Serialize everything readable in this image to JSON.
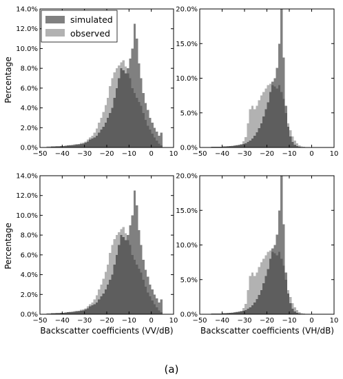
{
  "figure": {
    "ylabel": "Percentage",
    "xlabel_left": "Backscatter coefficients (VV/dB)",
    "xlabel_right": "Backscatter coefficients (VH/dB)",
    "caption": "(a)"
  },
  "legend": {
    "placement": "top-left of first panel",
    "items": [
      {
        "name": "simulated",
        "color": "#808080"
      },
      {
        "name": "observed",
        "color": "#b2b2b2"
      }
    ]
  },
  "colors": {
    "simulated": "#808080",
    "observed": "#b2b2b2",
    "overlap": "#5e5e5e"
  },
  "chart_data": [
    {
      "type": "bar",
      "panel": "top-left",
      "xlim": [
        -50,
        10
      ],
      "ylim": [
        0,
        14
      ],
      "xticks": [
        "−50",
        "−40",
        "−30",
        "−20",
        "−10",
        "0",
        "10"
      ],
      "yticks": [
        "0.0%",
        "2.0%",
        "4.0%",
        "6.0%",
        "8.0%",
        "10.0%",
        "12.0%",
        "14.0%"
      ],
      "bin_width": 1,
      "series": [
        {
          "name": "simulated",
          "bin_starts": [
            -50,
            -49,
            -48,
            -47,
            -46,
            -45,
            -44,
            -43,
            -42,
            -41,
            -40,
            -39,
            -38,
            -37,
            -36,
            -35,
            -34,
            -33,
            -32,
            -31,
            -30,
            -29,
            -28,
            -27,
            -26,
            -25,
            -24,
            -23,
            -22,
            -21,
            -20,
            -19,
            -18,
            -17,
            -16,
            -15,
            -14,
            -13,
            -12,
            -11,
            -10,
            -9,
            -8,
            -7,
            -6,
            -5,
            -4,
            -3,
            -2,
            -1,
            0,
            1,
            2,
            3,
            4
          ],
          "values": [
            0.05,
            0.05,
            0.05,
            0.05,
            0.05,
            0.1,
            0.1,
            0.1,
            0.1,
            0.15,
            0.15,
            0.15,
            0.2,
            0.2,
            0.25,
            0.25,
            0.3,
            0.3,
            0.35,
            0.4,
            0.5,
            0.6,
            0.8,
            0.9,
            1.0,
            1.2,
            1.5,
            1.8,
            2.1,
            2.5,
            3.0,
            3.5,
            4.0,
            5.0,
            6.0,
            7.0,
            8.0,
            7.8,
            7.5,
            8.0,
            9.0,
            10.0,
            12.5,
            11.0,
            8.5,
            7.0,
            5.5,
            4.5,
            3.8,
            3.0,
            2.5,
            2.0,
            1.6,
            1.2,
            1.5
          ]
        },
        {
          "name": "observed",
          "bin_starts": [
            -50,
            -49,
            -48,
            -47,
            -46,
            -45,
            -44,
            -43,
            -42,
            -41,
            -40,
            -39,
            -38,
            -37,
            -36,
            -35,
            -34,
            -33,
            -32,
            -31,
            -30,
            -29,
            -28,
            -27,
            -26,
            -25,
            -24,
            -23,
            -22,
            -21,
            -20,
            -19,
            -18,
            -17,
            -16,
            -15,
            -14,
            -13,
            -12,
            -11,
            -10,
            -9,
            -8,
            -7,
            -6,
            -5,
            -4,
            -3,
            -2,
            -1,
            0,
            1,
            2,
            3,
            4
          ],
          "values": [
            0.05,
            0.05,
            0.05,
            0.1,
            0.1,
            0.1,
            0.1,
            0.15,
            0.15,
            0.15,
            0.15,
            0.2,
            0.2,
            0.25,
            0.25,
            0.3,
            0.3,
            0.35,
            0.45,
            0.5,
            0.6,
            0.8,
            1.0,
            1.2,
            1.5,
            1.9,
            2.5,
            3.0,
            3.6,
            4.3,
            5.0,
            6.2,
            7.0,
            7.6,
            8.0,
            8.3,
            8.6,
            8.8,
            8.2,
            7.5,
            7.0,
            6.0,
            5.5,
            5.0,
            4.6,
            4.2,
            3.5,
            2.8,
            2.2,
            1.8,
            1.4,
            1.0,
            0.7,
            0.4,
            0.2
          ]
        }
      ]
    },
    {
      "type": "bar",
      "panel": "top-right",
      "xlim": [
        -50,
        10
      ],
      "ylim": [
        0,
        20
      ],
      "xticks": [
        "−50",
        "−40",
        "−30",
        "−20",
        "−10",
        "0",
        "10"
      ],
      "yticks": [
        "0.0%",
        "5.0%",
        "10.0%",
        "15.0%",
        "20.0%"
      ],
      "bin_width": 1,
      "series": [
        {
          "name": "simulated",
          "bin_starts": [
            -50,
            -49,
            -48,
            -47,
            -46,
            -45,
            -44,
            -43,
            -42,
            -41,
            -40,
            -39,
            -38,
            -37,
            -36,
            -35,
            -34,
            -33,
            -32,
            -31,
            -30,
            -29,
            -28,
            -27,
            -26,
            -25,
            -24,
            -23,
            -22,
            -21,
            -20,
            -19,
            -18,
            -17,
            -16,
            -15,
            -14,
            -13,
            -12,
            -11,
            -10,
            -9,
            -8,
            -7,
            -6,
            -5,
            -4,
            -3,
            -2,
            -1,
            0
          ],
          "values": [
            0.05,
            0.05,
            0.05,
            0.05,
            0.05,
            0.1,
            0.1,
            0.1,
            0.1,
            0.1,
            0.15,
            0.15,
            0.15,
            0.2,
            0.2,
            0.25,
            0.3,
            0.35,
            0.4,
            0.5,
            0.6,
            0.8,
            1.0,
            1.3,
            1.7,
            2.2,
            2.8,
            3.5,
            4.5,
            5.5,
            6.5,
            8.0,
            9.5,
            10.0,
            11.5,
            15.0,
            20.0,
            13.0,
            6.0,
            3.0,
            1.6,
            0.8,
            0.4,
            0.2,
            0.1,
            0.05,
            0.05,
            0.05,
            0.05,
            0.05,
            0.05
          ]
        },
        {
          "name": "observed",
          "bin_starts": [
            -50,
            -49,
            -48,
            -47,
            -46,
            -45,
            -44,
            -43,
            -42,
            -41,
            -40,
            -39,
            -38,
            -37,
            -36,
            -35,
            -34,
            -33,
            -32,
            -31,
            -30,
            -29,
            -28,
            -27,
            -26,
            -25,
            -24,
            -23,
            -22,
            -21,
            -20,
            -19,
            -18,
            -17,
            -16,
            -15,
            -14,
            -13,
            -12,
            -11,
            -10,
            -9,
            -8,
            -7,
            -6,
            -5,
            -4,
            -3,
            -2,
            -1,
            0
          ],
          "values": [
            0.05,
            0.05,
            0.05,
            0.05,
            0.05,
            0.1,
            0.1,
            0.1,
            0.1,
            0.1,
            0.15,
            0.15,
            0.2,
            0.2,
            0.25,
            0.3,
            0.35,
            0.4,
            0.5,
            0.9,
            1.5,
            3.5,
            5.5,
            6.0,
            5.5,
            6.0,
            6.8,
            7.5,
            8.0,
            8.5,
            9.0,
            9.2,
            9.0,
            8.8,
            8.5,
            9.0,
            8.0,
            7.0,
            5.0,
            3.5,
            2.5,
            1.6,
            1.0,
            0.6,
            0.3,
            0.15,
            0.1,
            0.05,
            0.05,
            0.05,
            0.05
          ]
        }
      ]
    },
    {
      "type": "bar",
      "panel": "bottom-left",
      "xlim": [
        -50,
        10
      ],
      "ylim": [
        0,
        14
      ],
      "xticks": [
        "−50",
        "−40",
        "−30",
        "−20",
        "−10",
        "0",
        "10"
      ],
      "yticks": [
        "0.0%",
        "2.0%",
        "4.0%",
        "6.0%",
        "8.0%",
        "10.0%",
        "12.0%",
        "14.0%"
      ],
      "bin_width": 1,
      "series": [
        {
          "name": "simulated",
          "bin_starts": [
            -50,
            -49,
            -48,
            -47,
            -46,
            -45,
            -44,
            -43,
            -42,
            -41,
            -40,
            -39,
            -38,
            -37,
            -36,
            -35,
            -34,
            -33,
            -32,
            -31,
            -30,
            -29,
            -28,
            -27,
            -26,
            -25,
            -24,
            -23,
            -22,
            -21,
            -20,
            -19,
            -18,
            -17,
            -16,
            -15,
            -14,
            -13,
            -12,
            -11,
            -10,
            -9,
            -8,
            -7,
            -6,
            -5,
            -4,
            -3,
            -2,
            -1,
            0,
            1,
            2,
            3,
            4
          ],
          "values": [
            0.05,
            0.05,
            0.05,
            0.05,
            0.05,
            0.1,
            0.1,
            0.1,
            0.1,
            0.15,
            0.15,
            0.15,
            0.2,
            0.2,
            0.25,
            0.25,
            0.3,
            0.3,
            0.35,
            0.4,
            0.5,
            0.6,
            0.8,
            0.9,
            1.0,
            1.2,
            1.5,
            1.8,
            2.1,
            2.5,
            3.0,
            3.5,
            4.0,
            5.0,
            6.0,
            7.0,
            8.0,
            7.8,
            7.5,
            8.0,
            9.0,
            10.0,
            12.5,
            11.0,
            8.5,
            7.0,
            5.5,
            4.5,
            3.8,
            3.0,
            2.5,
            2.0,
            1.6,
            1.2,
            1.5
          ]
        },
        {
          "name": "observed",
          "bin_starts": [
            -50,
            -49,
            -48,
            -47,
            -46,
            -45,
            -44,
            -43,
            -42,
            -41,
            -40,
            -39,
            -38,
            -37,
            -36,
            -35,
            -34,
            -33,
            -32,
            -31,
            -30,
            -29,
            -28,
            -27,
            -26,
            -25,
            -24,
            -23,
            -22,
            -21,
            -20,
            -19,
            -18,
            -17,
            -16,
            -15,
            -14,
            -13,
            -12,
            -11,
            -10,
            -9,
            -8,
            -7,
            -6,
            -5,
            -4,
            -3,
            -2,
            -1,
            0,
            1,
            2,
            3,
            4
          ],
          "values": [
            0.05,
            0.05,
            0.05,
            0.1,
            0.1,
            0.1,
            0.1,
            0.15,
            0.15,
            0.15,
            0.15,
            0.2,
            0.2,
            0.25,
            0.25,
            0.3,
            0.3,
            0.35,
            0.45,
            0.5,
            0.6,
            0.8,
            1.0,
            1.2,
            1.5,
            1.9,
            2.5,
            3.0,
            3.6,
            4.3,
            5.0,
            6.2,
            7.0,
            7.6,
            8.0,
            8.3,
            8.6,
            8.8,
            8.2,
            7.5,
            7.0,
            6.0,
            5.5,
            5.0,
            4.6,
            4.2,
            3.5,
            2.8,
            2.2,
            1.8,
            1.4,
            1.0,
            0.7,
            0.4,
            0.2
          ]
        }
      ]
    },
    {
      "type": "bar",
      "panel": "bottom-right",
      "xlim": [
        -50,
        10
      ],
      "ylim": [
        0,
        20
      ],
      "xticks": [
        "−50",
        "−40",
        "−30",
        "−20",
        "−10",
        "0",
        "10"
      ],
      "yticks": [
        "0.0%",
        "5.0%",
        "10.0%",
        "15.0%",
        "20.0%"
      ],
      "bin_width": 1,
      "series": [
        {
          "name": "simulated",
          "bin_starts": [
            -50,
            -49,
            -48,
            -47,
            -46,
            -45,
            -44,
            -43,
            -42,
            -41,
            -40,
            -39,
            -38,
            -37,
            -36,
            -35,
            -34,
            -33,
            -32,
            -31,
            -30,
            -29,
            -28,
            -27,
            -26,
            -25,
            -24,
            -23,
            -22,
            -21,
            -20,
            -19,
            -18,
            -17,
            -16,
            -15,
            -14,
            -13,
            -12,
            -11,
            -10,
            -9,
            -8,
            -7,
            -6,
            -5,
            -4,
            -3,
            -2,
            -1,
            0
          ],
          "values": [
            0.05,
            0.05,
            0.05,
            0.05,
            0.05,
            0.1,
            0.1,
            0.1,
            0.1,
            0.1,
            0.15,
            0.15,
            0.15,
            0.2,
            0.2,
            0.25,
            0.3,
            0.35,
            0.4,
            0.5,
            0.6,
            0.8,
            1.0,
            1.3,
            1.7,
            2.2,
            2.8,
            3.5,
            4.5,
            5.5,
            6.5,
            8.0,
            9.5,
            10.0,
            11.5,
            15.0,
            20.0,
            13.0,
            6.0,
            3.0,
            1.6,
            0.8,
            0.4,
            0.2,
            0.1,
            0.05,
            0.05,
            0.05,
            0.05,
            0.05,
            0.05
          ]
        },
        {
          "name": "observed",
          "bin_starts": [
            -50,
            -49,
            -48,
            -47,
            -46,
            -45,
            -44,
            -43,
            -42,
            -41,
            -40,
            -39,
            -38,
            -37,
            -36,
            -35,
            -34,
            -33,
            -32,
            -31,
            -30,
            -29,
            -28,
            -27,
            -26,
            -25,
            -24,
            -23,
            -22,
            -21,
            -20,
            -19,
            -18,
            -17,
            -16,
            -15,
            -14,
            -13,
            -12,
            -11,
            -10,
            -9,
            -8,
            -7,
            -6,
            -5,
            -4,
            -3,
            -2,
            -1,
            0
          ],
          "values": [
            0.05,
            0.05,
            0.05,
            0.05,
            0.05,
            0.1,
            0.1,
            0.1,
            0.1,
            0.1,
            0.15,
            0.15,
            0.2,
            0.2,
            0.25,
            0.3,
            0.35,
            0.4,
            0.5,
            0.9,
            1.5,
            3.5,
            5.5,
            6.0,
            5.5,
            6.0,
            6.8,
            7.5,
            8.0,
            8.5,
            9.0,
            9.2,
            9.0,
            8.8,
            8.5,
            9.0,
            8.0,
            7.0,
            5.0,
            3.5,
            2.5,
            1.6,
            1.0,
            0.6,
            0.3,
            0.15,
            0.1,
            0.05,
            0.05,
            0.05,
            0.05
          ]
        }
      ]
    }
  ]
}
